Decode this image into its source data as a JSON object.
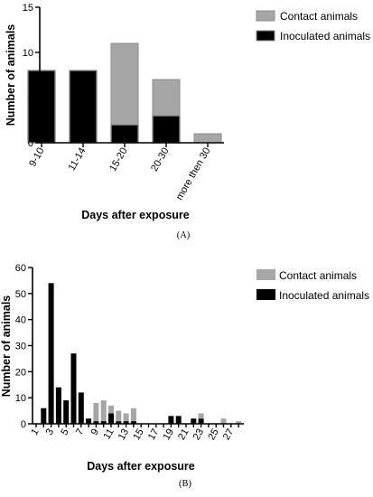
{
  "chart_data": [
    {
      "type": "bar",
      "stacked": true,
      "panel_label": "(A)",
      "categories": [
        "9-10",
        "11-14",
        "15-20",
        "20-30",
        "more then 30"
      ],
      "series": [
        {
          "name": "Contact animals",
          "values": [
            0,
            0,
            9,
            4,
            1
          ],
          "color": "#a6a6a6"
        },
        {
          "name": "Inoculated animals",
          "values": [
            8,
            8,
            2,
            3,
            0
          ],
          "color": "#000000"
        }
      ],
      "xlabel": "Days after exposure",
      "ylabel": "Number of animals",
      "ylim": [
        0,
        15
      ],
      "yticks": [
        0,
        5,
        10,
        15
      ],
      "legend": "top-right",
      "grid": false
    },
    {
      "type": "bar",
      "stacked": true,
      "panel_label": "(B)",
      "categories": [
        "1",
        "2",
        "3",
        "4",
        "5",
        "6",
        "7",
        "8",
        "9",
        "10",
        "11",
        "12",
        "13",
        "14",
        "15",
        "16",
        "17",
        "18",
        "19",
        "20",
        "21",
        "22",
        "23",
        "24",
        "25",
        "26",
        "27",
        "28"
      ],
      "tick_labels": [
        "1",
        "3",
        "5",
        "7",
        "9",
        "11",
        "13",
        "15",
        "17",
        "19",
        "21",
        "23",
        "25",
        "27"
      ],
      "series": [
        {
          "name": "Inoculated animals",
          "values": [
            0,
            6,
            54,
            14,
            9,
            27,
            12,
            2,
            1,
            1,
            4,
            1,
            1,
            1,
            0,
            0,
            0,
            0,
            3,
            3,
            0,
            2,
            2,
            0,
            0,
            0,
            0,
            0
          ],
          "color": "#000000"
        },
        {
          "name": "Contact animals",
          "values": [
            0,
            0,
            0,
            0,
            0,
            0,
            0,
            0,
            7,
            8,
            3,
            4,
            3,
            5,
            0,
            0,
            0,
            0,
            0,
            0,
            0,
            0,
            2,
            0,
            0,
            2,
            0,
            1
          ],
          "color": "#a6a6a6"
        }
      ],
      "xlabel": "Days after exposure",
      "ylabel": "Number of animals",
      "ylim": [
        0,
        60
      ],
      "yticks": [
        0,
        10,
        20,
        30,
        40,
        50,
        60
      ],
      "legend": "top-right",
      "grid": false
    }
  ]
}
